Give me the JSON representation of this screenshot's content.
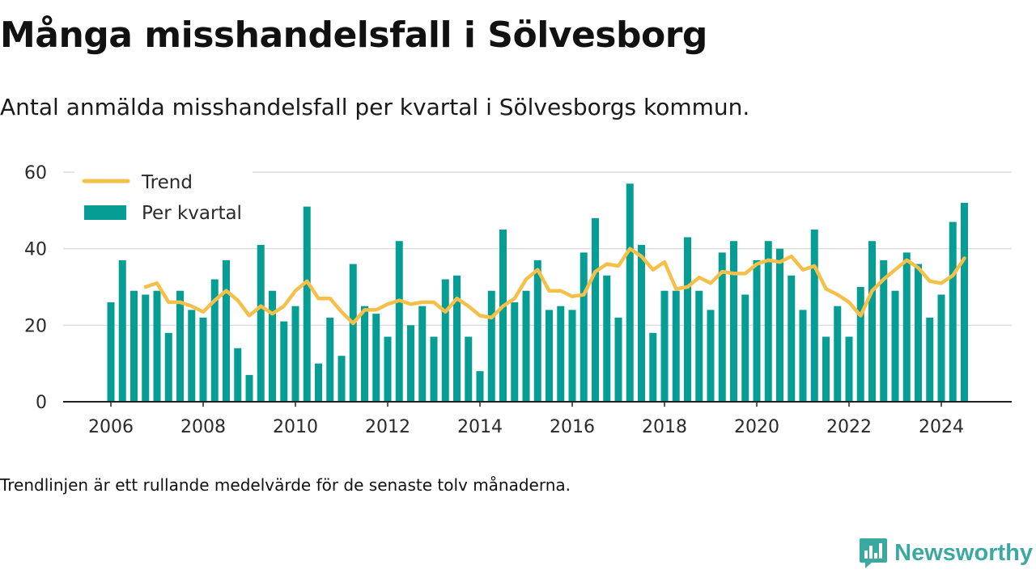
{
  "header": {
    "title": "Många misshandelsfall i Sölvesborg",
    "subtitle": "Antal anmälda misshandelsfall per kvartal i Sölvesborgs kommun."
  },
  "footer": {
    "note": "Trendlinjen är ett rullande medelvärde för de senaste tolv månaderna.",
    "brand": "Newsworthy",
    "brand_icon": "bar-chart-bubble-icon"
  },
  "colors": {
    "bars": "#069e94",
    "trend": "#f5c04a",
    "brand": "#3aa99f",
    "grid": "#dddddd",
    "axis": "#222222"
  },
  "chart_data": {
    "type": "bar",
    "title": "Många misshandelsfall i Sölvesborg",
    "subtitle": "Antal anmälda misshandelsfall per kvartal i Sölvesborgs kommun.",
    "xlabel": "",
    "ylabel": "",
    "ylim": [
      0,
      60
    ],
    "yticks": [
      0,
      20,
      40,
      60
    ],
    "xticks": [
      2006,
      2008,
      2010,
      2012,
      2014,
      2016,
      2018,
      2020,
      2022,
      2024
    ],
    "grid": true,
    "legend_position": "top-left",
    "x_start_year": 2006,
    "periods_per_year": 4,
    "series": [
      {
        "name": "Per kvartal",
        "kind": "bar",
        "values": [
          26,
          37,
          29,
          28,
          29,
          18,
          29,
          24,
          22,
          32,
          37,
          14,
          7,
          41,
          29,
          21,
          25,
          51,
          10,
          22,
          12,
          36,
          25,
          23,
          17,
          42,
          20,
          25,
          17,
          32,
          33,
          17,
          8,
          29,
          45,
          26,
          29,
          37,
          24,
          25,
          24,
          39,
          48,
          33,
          22,
          57,
          41,
          18,
          29,
          29,
          43,
          29,
          24,
          39,
          42,
          28,
          37,
          42,
          40,
          33,
          24,
          45,
          17,
          25,
          17,
          30,
          42,
          37,
          29,
          39,
          36,
          22,
          28,
          47,
          52
        ]
      },
      {
        "name": "Trend",
        "kind": "line",
        "values": [
          null,
          null,
          null,
          30,
          31,
          26,
          26,
          25,
          23.5,
          26.5,
          29,
          26.5,
          22.5,
          25,
          23,
          25,
          29,
          31.5,
          27,
          27,
          23.5,
          20.5,
          24,
          24,
          25.5,
          26.5,
          25.5,
          26,
          26,
          23.5,
          27,
          25,
          22.5,
          22,
          25,
          27,
          32,
          34.5,
          29,
          29,
          27.5,
          28,
          34,
          36,
          35.5,
          40,
          38,
          34.5,
          36.5,
          29.5,
          30,
          32.5,
          31,
          34,
          33.5,
          33.5,
          36,
          37,
          36.5,
          38,
          34.5,
          35.5,
          29.5,
          28,
          26,
          22.5,
          29,
          32,
          34.5,
          37,
          35,
          31.5,
          31,
          33,
          37.5
        ]
      }
    ]
  }
}
